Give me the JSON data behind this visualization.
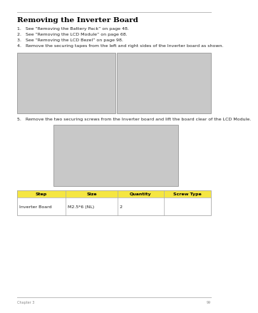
{
  "title": "Removing the Inverter Board",
  "steps": [
    "1.   See “Removing the Battery Pack” on page 48.",
    "2.   See “Removing the LCD Module” on page 68.",
    "3.   See “Removing the LCD Bezel” on page 98.",
    "4.   Remove the securing tapes from the left and right sides of the Inverter board as shown."
  ],
  "step5": "5.   Remove the two securing screws from the Inverter board and lift the board clear of the LCD Module.",
  "table_headers": [
    "Step",
    "Size",
    "Quantity",
    "Screw Type"
  ],
  "table_row": [
    "Inverter Board",
    "M2.5*6 (NL)",
    "2",
    ""
  ],
  "header_bg": "#F5E642",
  "header_text": "#000000",
  "table_border": "#AAAAAA",
  "bg_color": "#FFFFFF",
  "text_color": "#222222",
  "footer_text": "99",
  "chapter_text": "Chapter 3",
  "title_fontsize": 7.5,
  "body_fontsize": 4.5,
  "table_fontsize": 4.5
}
